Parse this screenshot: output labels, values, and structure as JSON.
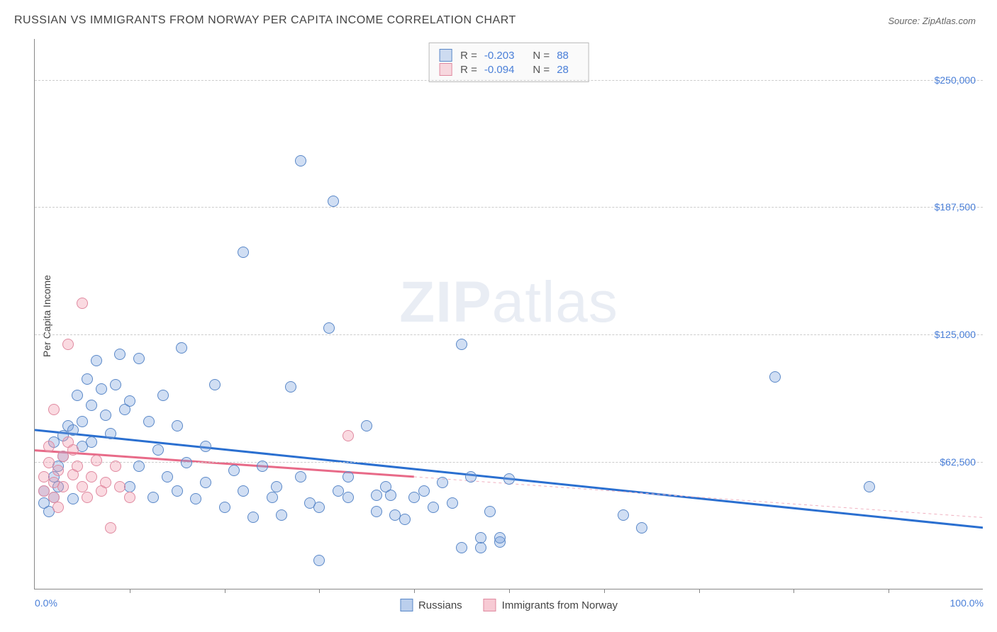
{
  "title": "RUSSIAN VS IMMIGRANTS FROM NORWAY PER CAPITA INCOME CORRELATION CHART",
  "source": "Source: ZipAtlas.com",
  "ylabel": "Per Capita Income",
  "watermark": {
    "bold": "ZIP",
    "rest": "atlas"
  },
  "chart": {
    "type": "scatter",
    "xlim": [
      0,
      100
    ],
    "ylim": [
      0,
      270000
    ],
    "background_color": "#ffffff",
    "grid_color": "#cccccc",
    "axis_color": "#888888",
    "yticks": [
      {
        "v": 62500,
        "label": "$62,500"
      },
      {
        "v": 125000,
        "label": "$125,000"
      },
      {
        "v": 187500,
        "label": "$187,500"
      },
      {
        "v": 250000,
        "label": "$250,000"
      }
    ],
    "xticks_minor": [
      10,
      20,
      30,
      40,
      50,
      60,
      70,
      80,
      90
    ],
    "xticks_label": [
      {
        "v": 0,
        "label": "0.0%"
      },
      {
        "v": 100,
        "label": "100.0%"
      }
    ],
    "tick_label_color": "#4a7fd8",
    "point_radius": 8,
    "point_stroke_width": 1,
    "series": [
      {
        "name": "Russians",
        "fill": "rgba(120,160,220,0.35)",
        "stroke": "#5a88c8",
        "R": "-0.203",
        "N": "88",
        "trend": {
          "x1": 0,
          "y1": 78000,
          "x2": 100,
          "y2": 30000,
          "color": "#2a6fd0",
          "width": 3,
          "dash": ""
        },
        "points": [
          [
            1,
            42000
          ],
          [
            1,
            48000
          ],
          [
            1.5,
            38000
          ],
          [
            2,
            45000
          ],
          [
            2,
            55000
          ],
          [
            2,
            72000
          ],
          [
            2.5,
            60000
          ],
          [
            2.5,
            50000
          ],
          [
            3,
            75000
          ],
          [
            3,
            65000
          ],
          [
            3.5,
            80000
          ],
          [
            4,
            44000
          ],
          [
            4,
            78000
          ],
          [
            4.5,
            95000
          ],
          [
            5,
            70000
          ],
          [
            5,
            82000
          ],
          [
            5.5,
            103000
          ],
          [
            6,
            90000
          ],
          [
            6,
            72000
          ],
          [
            6.5,
            112000
          ],
          [
            7,
            98000
          ],
          [
            7.5,
            85000
          ],
          [
            8,
            76000
          ],
          [
            8.5,
            100000
          ],
          [
            9,
            115000
          ],
          [
            9.5,
            88000
          ],
          [
            10,
            50000
          ],
          [
            10,
            92000
          ],
          [
            11,
            113000
          ],
          [
            11,
            60000
          ],
          [
            12,
            82000
          ],
          [
            12.5,
            45000
          ],
          [
            13,
            68000
          ],
          [
            13.5,
            95000
          ],
          [
            14,
            55000
          ],
          [
            15,
            48000
          ],
          [
            15,
            80000
          ],
          [
            15.5,
            118000
          ],
          [
            16,
            62000
          ],
          [
            17,
            44000
          ],
          [
            18,
            70000
          ],
          [
            18,
            52000
          ],
          [
            19,
            100000
          ],
          [
            20,
            40000
          ],
          [
            21,
            58000
          ],
          [
            22,
            48000
          ],
          [
            22,
            165000
          ],
          [
            23,
            35000
          ],
          [
            24,
            60000
          ],
          [
            25,
            45000
          ],
          [
            25.5,
            50000
          ],
          [
            26,
            36000
          ],
          [
            27,
            99000
          ],
          [
            28,
            55000
          ],
          [
            28,
            210000
          ],
          [
            29,
            42000
          ],
          [
            30,
            14000
          ],
          [
            30,
            40000
          ],
          [
            31,
            128000
          ],
          [
            31.5,
            190000
          ],
          [
            32,
            48000
          ],
          [
            33,
            55000
          ],
          [
            33,
            45000
          ],
          [
            35,
            80000
          ],
          [
            36,
            38000
          ],
          [
            37,
            50000
          ],
          [
            37.5,
            46000
          ],
          [
            39,
            34000
          ],
          [
            40,
            45000
          ],
          [
            41,
            48000
          ],
          [
            42,
            40000
          ],
          [
            43,
            52000
          ],
          [
            45,
            120000
          ],
          [
            45,
            20000
          ],
          [
            46,
            55000
          ],
          [
            47,
            20000
          ],
          [
            47,
            25000
          ],
          [
            48,
            38000
          ],
          [
            50,
            54000
          ],
          [
            62,
            36000
          ],
          [
            64,
            30000
          ],
          [
            78,
            104000
          ],
          [
            88,
            50000
          ],
          [
            49,
            23000
          ],
          [
            49,
            25000
          ],
          [
            36,
            46000
          ],
          [
            38,
            36000
          ],
          [
            44,
            42000
          ]
        ]
      },
      {
        "name": "Immigrants from Norway",
        "fill": "rgba(240,150,170,0.35)",
        "stroke": "#e08aa0",
        "R": "-0.094",
        "N": "28",
        "trend": {
          "x1": 0,
          "y1": 68000,
          "x2": 40,
          "y2": 55000,
          "color": "#e86a88",
          "width": 3,
          "dash": ""
        },
        "trend_ext": {
          "x1": 40,
          "y1": 55000,
          "x2": 100,
          "y2": 35000,
          "color": "#f0b0c0",
          "width": 1,
          "dash": "4,4"
        },
        "points": [
          [
            1,
            48000
          ],
          [
            1,
            55000
          ],
          [
            1.5,
            62000
          ],
          [
            1.5,
            70000
          ],
          [
            2,
            45000
          ],
          [
            2,
            52000
          ],
          [
            2,
            88000
          ],
          [
            2.5,
            58000
          ],
          [
            2.5,
            40000
          ],
          [
            3,
            65000
          ],
          [
            3,
            50000
          ],
          [
            3.5,
            72000
          ],
          [
            3.5,
            120000
          ],
          [
            4,
            56000
          ],
          [
            4,
            68000
          ],
          [
            4.5,
            60000
          ],
          [
            5,
            50000
          ],
          [
            5,
            140000
          ],
          [
            5.5,
            45000
          ],
          [
            6,
            55000
          ],
          [
            6.5,
            63000
          ],
          [
            7,
            48000
          ],
          [
            7.5,
            52000
          ],
          [
            8,
            30000
          ],
          [
            8.5,
            60000
          ],
          [
            9,
            50000
          ],
          [
            10,
            45000
          ],
          [
            33,
            75000
          ]
        ]
      }
    ]
  },
  "legend_bottom": [
    {
      "label": "Russians",
      "fill": "rgba(120,160,220,0.5)",
      "stroke": "#5a88c8"
    },
    {
      "label": "Immigrants from Norway",
      "fill": "rgba(240,150,170,0.5)",
      "stroke": "#e08aa0"
    }
  ]
}
